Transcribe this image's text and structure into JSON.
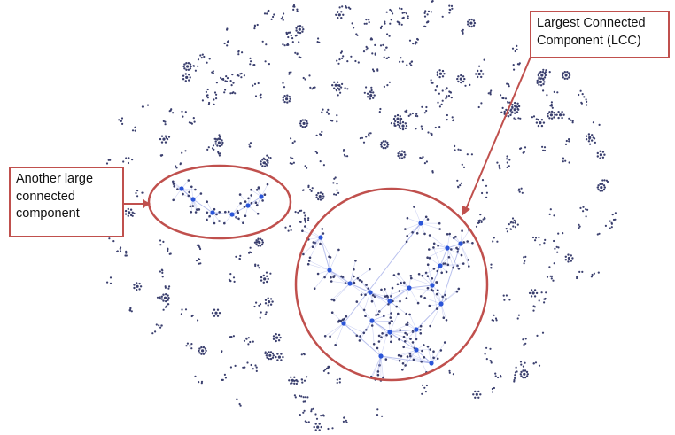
{
  "annotations": {
    "lcc": {
      "lines": [
        "Largest Connected",
        "Component (LCC)"
      ]
    },
    "other": {
      "lines": [
        "Another large",
        "connected",
        "component"
      ]
    }
  },
  "colors": {
    "annotation": "#c0504d",
    "node": "#3a3f6e",
    "highlight_node": "#2b55d8",
    "edge": "#9aa5e6"
  },
  "icons": [
    "arrow-icon"
  ]
}
